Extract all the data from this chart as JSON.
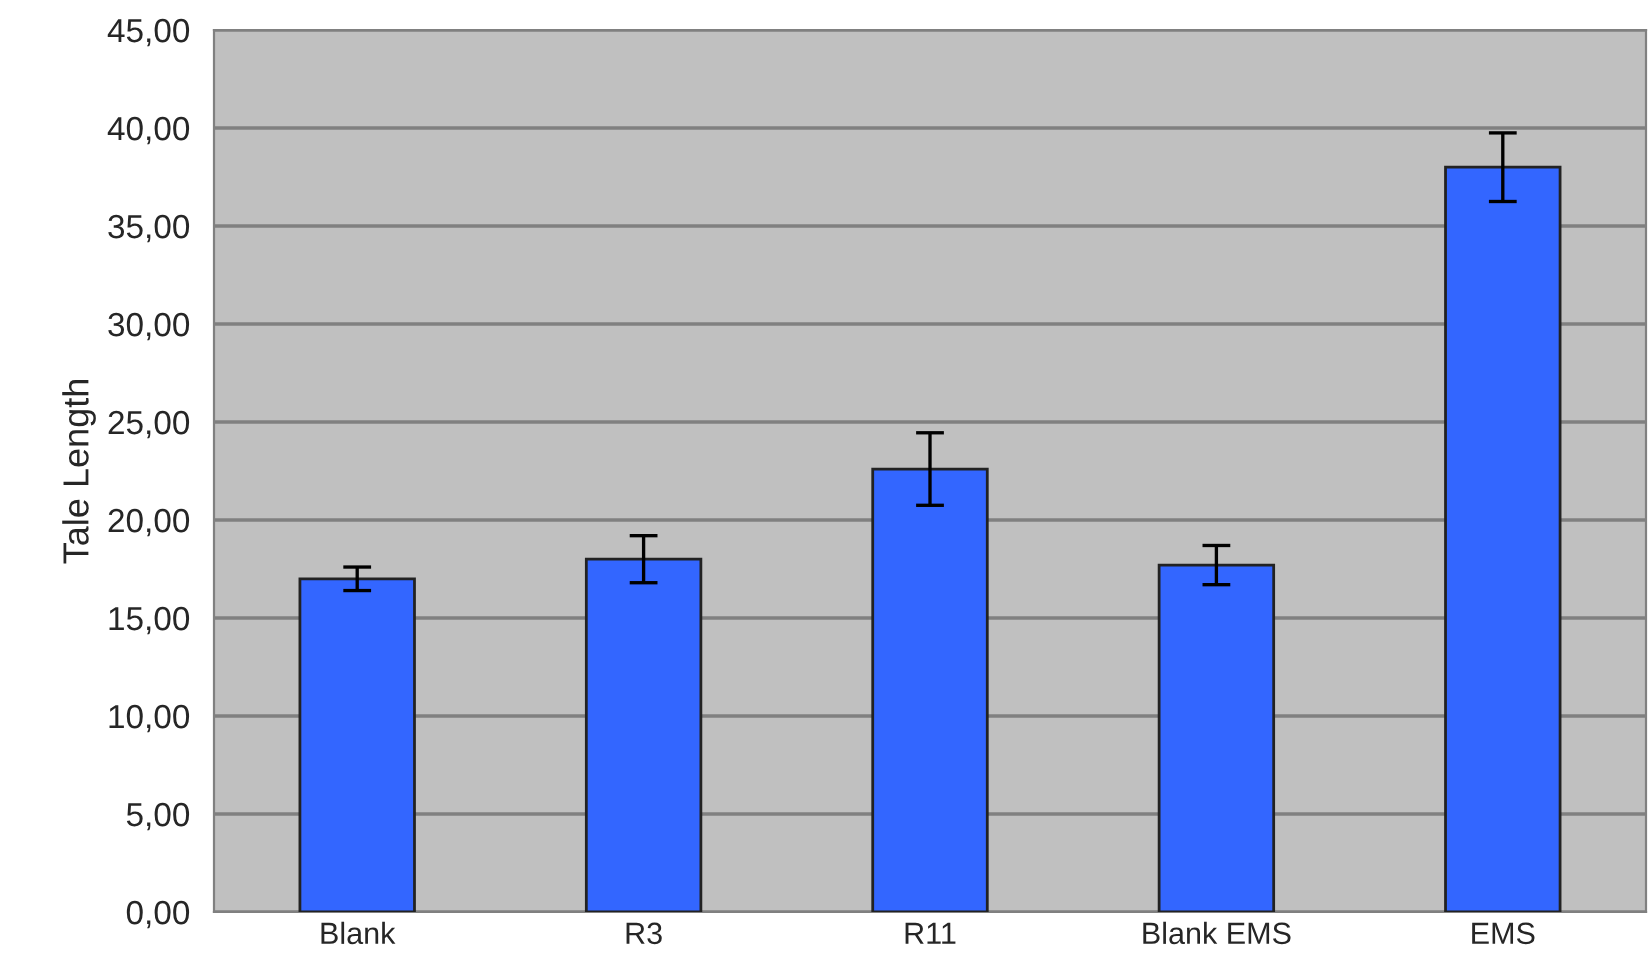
{
  "chart_data": {
    "type": "bar",
    "ylabel": "Tale Length",
    "categories": [
      "Blank",
      "R3",
      "R11",
      "Blank EMS",
      "EMS"
    ],
    "values": [
      17.0,
      18.0,
      22.6,
      17.7,
      38.0
    ],
    "errors": [
      0.6,
      1.2,
      1.85,
      1.0,
      1.75
    ],
    "color": "#3366ff",
    "ylim": [
      0,
      45
    ],
    "yticks": [
      {
        "value": 0,
        "label": "0,00"
      },
      {
        "value": 5,
        "label": "5,00"
      },
      {
        "value": 10,
        "label": "10,00"
      },
      {
        "value": 15,
        "label": "15,00"
      },
      {
        "value": 20,
        "label": "20,00"
      },
      {
        "value": 25,
        "label": "25,00"
      },
      {
        "value": 30,
        "label": "30,00"
      },
      {
        "value": 35,
        "label": "35,00"
      },
      {
        "value": 40,
        "label": "40,00"
      },
      {
        "value": 45,
        "label": "45,00"
      }
    ],
    "grid": "y"
  }
}
